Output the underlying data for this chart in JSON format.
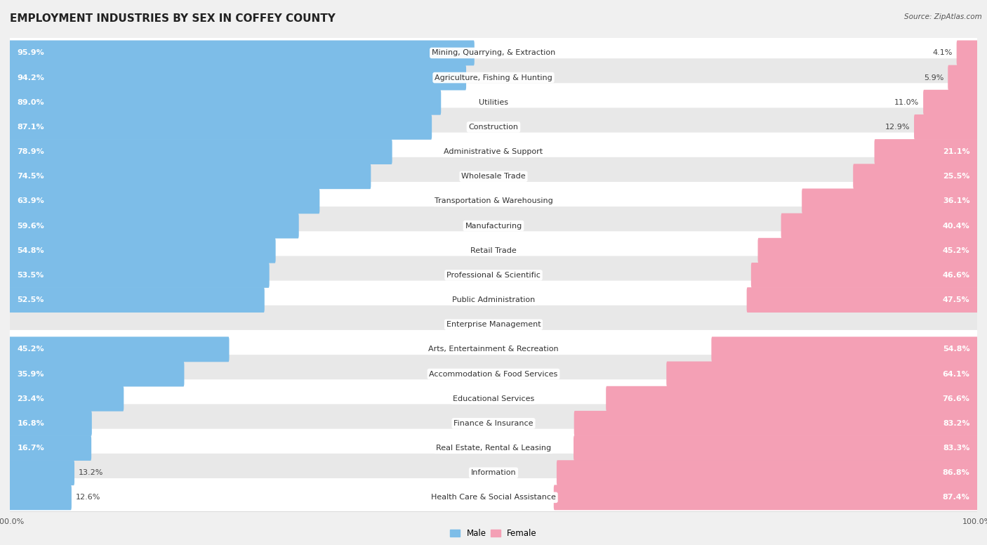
{
  "title": "EMPLOYMENT INDUSTRIES BY SEX IN COFFEY COUNTY",
  "source": "Source: ZipAtlas.com",
  "categories": [
    "Mining, Quarrying, & Extraction",
    "Agriculture, Fishing & Hunting",
    "Utilities",
    "Construction",
    "Administrative & Support",
    "Wholesale Trade",
    "Transportation & Warehousing",
    "Manufacturing",
    "Retail Trade",
    "Professional & Scientific",
    "Public Administration",
    "Enterprise Management",
    "Arts, Entertainment & Recreation",
    "Accommodation & Food Services",
    "Educational Services",
    "Finance & Insurance",
    "Real Estate, Rental & Leasing",
    "Information",
    "Health Care & Social Assistance"
  ],
  "male_pct": [
    95.9,
    94.2,
    89.0,
    87.1,
    78.9,
    74.5,
    63.9,
    59.6,
    54.8,
    53.5,
    52.5,
    0.0,
    45.2,
    35.9,
    23.4,
    16.8,
    16.7,
    13.2,
    12.6
  ],
  "female_pct": [
    4.1,
    5.9,
    11.0,
    12.9,
    21.1,
    25.5,
    36.1,
    40.4,
    45.2,
    46.6,
    47.5,
    0.0,
    54.8,
    64.1,
    76.6,
    83.2,
    83.3,
    86.8,
    87.4
  ],
  "male_color": "#7dbde8",
  "female_color": "#f4a0b5",
  "background_color": "#f0f0f0",
  "row_light_color": "#ffffff",
  "row_dark_color": "#e8e8e8",
  "title_fontsize": 11,
  "label_fontsize": 8,
  "pct_fontsize": 8,
  "xlabel_fontsize": 8,
  "figsize": [
    14.06,
    7.76
  ],
  "dpi": 100
}
